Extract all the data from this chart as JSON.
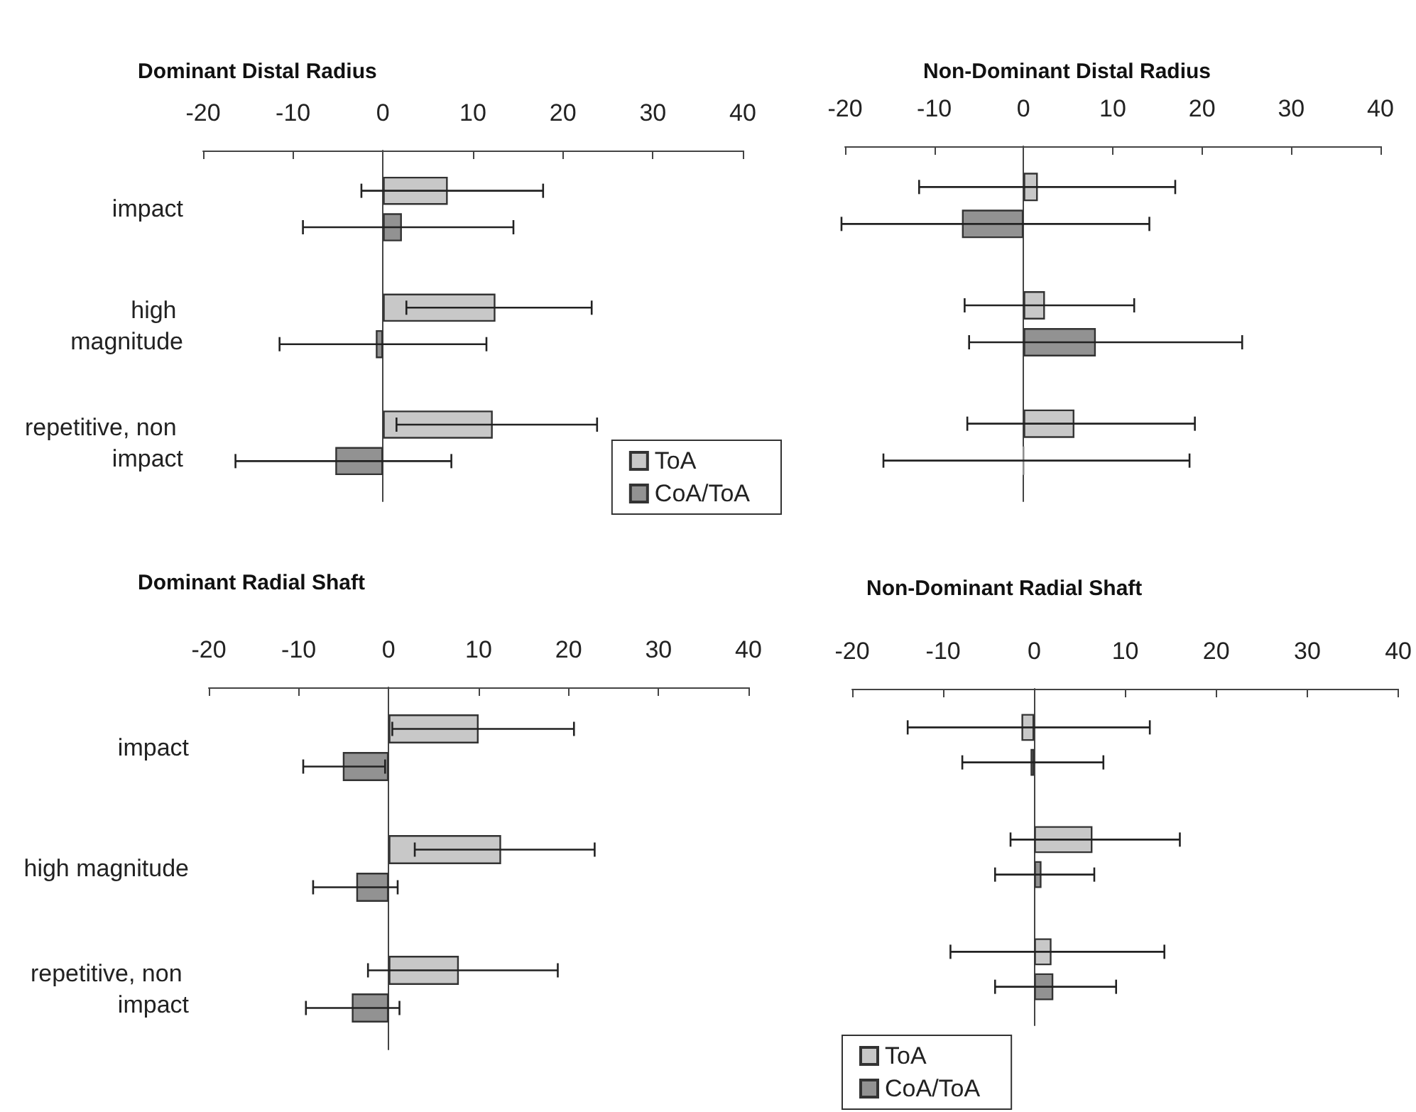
{
  "chart_data": [
    {
      "type": "bar",
      "orientation": "horizontal",
      "title": "Dominant Distal Radius",
      "categories": [
        "impact",
        "high magnitude",
        "repetitive, non impact"
      ],
      "xlim": [
        -20,
        40
      ],
      "xticks": [
        -20,
        -10,
        0,
        10,
        20,
        30,
        40
      ],
      "legend": "bottom right",
      "series": [
        {
          "name": "ToA",
          "color": "#c8c8c8",
          "values": [
            7.2,
            12.5,
            12.2
          ],
          "errors": [
            [
              -2.4,
              17.8
            ],
            [
              2.6,
              23.2
            ],
            [
              1.5,
              23.8
            ]
          ]
        },
        {
          "name": "CoA/ToA",
          "color": "#929292",
          "values": [
            2.1,
            -0.8,
            -5.3
          ],
          "errors": [
            [
              -8.9,
              14.5
            ],
            [
              -11.5,
              11.5
            ],
            [
              -16.4,
              7.6
            ]
          ]
        }
      ]
    },
    {
      "type": "bar",
      "orientation": "horizontal",
      "title": "Non-Dominant Distal Radius",
      "categories": [
        "impact",
        "high magnitude",
        "repetitive, non impact"
      ],
      "tick_labels": "x",
      "xlim": [
        -20,
        40
      ],
      "xticks": [
        -20,
        -10,
        0,
        10,
        20,
        30,
        40
      ],
      "series": [
        {
          "color": "#c8c8c8",
          "values": [
            1.6,
            2.4,
            5.7
          ],
          "errors": [
            [
              -11.7,
              17.0
            ],
            [
              -6.6,
              12.4
            ],
            [
              -6.3,
              19.2
            ]
          ]
        },
        {
          "color": "#929292",
          "values": [
            -6.9,
            8.1,
            0
          ],
          "errors": [
            [
              -20.4,
              14.1
            ],
            [
              -6.1,
              24.5
            ],
            [
              -15.7,
              18.6
            ]
          ]
        }
      ]
    },
    {
      "type": "bar",
      "orientation": "horizontal",
      "title": "Dominant Radial Shaft",
      "categories": [
        "impact",
        "high magnitude",
        "repetitive, non impact"
      ],
      "xlim": [
        -20,
        40
      ],
      "xticks": [
        -20,
        -10,
        0,
        10,
        20,
        30,
        40
      ],
      "series": [
        {
          "color": "#c8c8c8",
          "values": [
            10.0,
            12.5,
            7.8
          ],
          "errors": [
            [
              0.4,
              20.6
            ],
            [
              2.9,
              22.9
            ],
            [
              -2.3,
              18.8
            ]
          ]
        },
        {
          "color": "#929292",
          "values": [
            -5.1,
            -3.6,
            -4.1
          ],
          "errors": [
            [
              -9.5,
              -0.4
            ],
            [
              -8.4,
              1.0
            ],
            [
              -9.2,
              1.2
            ]
          ]
        }
      ]
    },
    {
      "type": "bar",
      "orientation": "horizontal",
      "title": "Non-Dominant Radial Shaft",
      "categories": [
        "impact",
        "high magnitude",
        "repetitive, non impact"
      ],
      "tick_labels": "x",
      "xlim": [
        -20,
        40
      ],
      "xticks": [
        -20,
        -10,
        0,
        10,
        20,
        30,
        40
      ],
      "legend": "bottom left",
      "series": [
        {
          "name": "ToA",
          "color": "#c8c8c8",
          "values": [
            -1.4,
            6.4,
            1.9
          ],
          "errors": [
            [
              -13.9,
              12.7
            ],
            [
              -2.6,
              16.0
            ],
            [
              -9.2,
              14.3
            ]
          ]
        },
        {
          "name": "CoA/ToA",
          "color": "#929292",
          "values": [
            -0.4,
            0.8,
            2.1
          ],
          "errors": [
            [
              -7.9,
              7.6
            ],
            [
              -4.3,
              6.6
            ],
            [
              -4.3,
              9.0
            ]
          ]
        }
      ]
    }
  ]
}
